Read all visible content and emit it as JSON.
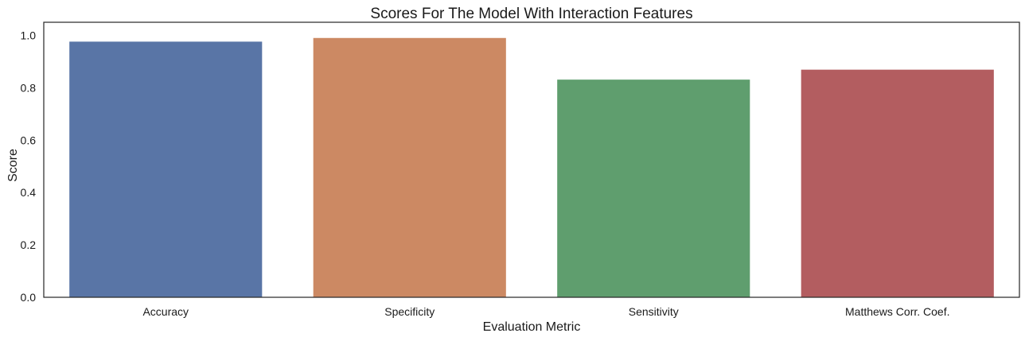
{
  "chart_data": {
    "type": "bar",
    "title": "Scores For The Model With Interaction Features",
    "xlabel": "Evaluation Metric",
    "ylabel": "Score",
    "categories": [
      "Accuracy",
      "Specificity",
      "Sensitivity",
      "Matthews Corr. Coef."
    ],
    "values": [
      0.976,
      0.99,
      0.831,
      0.869
    ],
    "colors": [
      "#5975a6",
      "#cc8963",
      "#5f9e6e",
      "#b35d60"
    ],
    "ylim": [
      0,
      1.05
    ],
    "yticks": [
      0.0,
      0.2,
      0.4,
      0.6,
      0.8,
      1.0
    ],
    "ytick_labels": [
      "0.0",
      "0.2",
      "0.4",
      "0.6",
      "0.8",
      "1.0"
    ],
    "grid": false,
    "legend": "none"
  }
}
